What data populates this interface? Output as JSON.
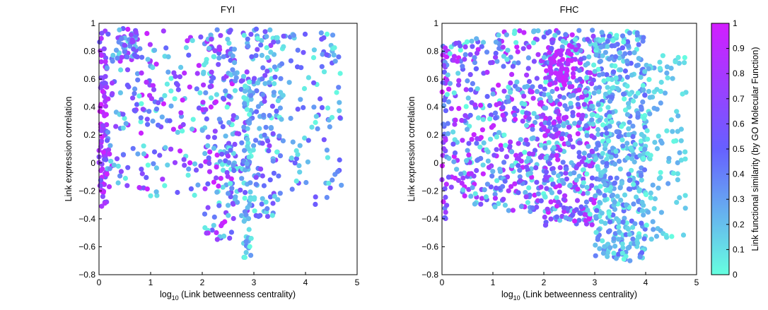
{
  "colorbar": {
    "label": "Link functional similarity (by GO Molecular Function)",
    "range": [
      0,
      1
    ],
    "ticks": [
      "0",
      "0.1",
      "0.2",
      "0.3",
      "0.4",
      "0.5",
      "0.6",
      "0.7",
      "0.8",
      "0.9",
      "1"
    ],
    "colors": {
      "low": "#66FFE0",
      "mid": "#6660FF",
      "high": "#D21EFF"
    }
  },
  "chart_data": [
    {
      "type": "scatter",
      "title": "FYI",
      "xlabel_prefix": "log",
      "xlabel_sub": "10",
      "xlabel_rest": " (Link betweenness centrality)",
      "ylabel": "Link expression correlation",
      "xlim": [
        0,
        5
      ],
      "ylim": [
        -0.8,
        1
      ],
      "xticks": [
        "0",
        "1",
        "2",
        "3",
        "4",
        "5"
      ],
      "yticks": [
        "−0.8",
        "−0.6",
        "−0.4",
        "−0.2",
        "0",
        "0.2",
        "0.4",
        "0.6",
        "0.8",
        "1"
      ],
      "clusters": [
        {
          "name": "x0-column",
          "x": [
            0,
            0.15
          ],
          "y": [
            -0.32,
            0.95
          ],
          "n": 90,
          "c": [
            0.5,
            1
          ]
        },
        {
          "name": "x0.2-1",
          "x": [
            0.15,
            1.0
          ],
          "y": [
            -0.2,
            0.97
          ],
          "n": 110,
          "c": [
            0,
            1
          ]
        },
        {
          "name": "x0.4-0.7-top",
          "x": [
            0.35,
            0.75
          ],
          "y": [
            0.75,
            0.97
          ],
          "n": 35,
          "c": [
            0,
            0.8
          ]
        },
        {
          "name": "x1-2",
          "x": [
            1.0,
            2.0
          ],
          "y": [
            -0.25,
            0.95
          ],
          "n": 90,
          "c": [
            0,
            1
          ]
        },
        {
          "name": "x2-2.5",
          "x": [
            2.0,
            2.6
          ],
          "y": [
            -0.55,
            0.97
          ],
          "n": 150,
          "c": [
            0,
            1
          ]
        },
        {
          "name": "x2.5-3.5",
          "x": [
            2.5,
            3.5
          ],
          "y": [
            -0.4,
            0.97
          ],
          "n": 220,
          "c": [
            0,
            0.75
          ]
        },
        {
          "name": "x2.85-column",
          "x": [
            2.8,
            2.95
          ],
          "y": [
            -0.68,
            0.6
          ],
          "n": 60,
          "c": [
            0,
            0.4
          ]
        },
        {
          "name": "x3.5-4.7",
          "x": [
            3.4,
            4.7
          ],
          "y": [
            -0.3,
            0.95
          ],
          "n": 110,
          "c": [
            0,
            0.6
          ]
        }
      ]
    },
    {
      "type": "scatter",
      "title": "FHC",
      "xlabel_prefix": "log",
      "xlabel_sub": "10",
      "xlabel_rest": " (Link betweenness centrality)",
      "ylabel": "Link expression correlation",
      "xlim": [
        0,
        5
      ],
      "ylim": [
        -0.8,
        1
      ],
      "xticks": [
        "0",
        "1",
        "2",
        "3",
        "4",
        "5"
      ],
      "yticks": [
        "−0.8",
        "−0.6",
        "−0.4",
        "−0.2",
        "0",
        "0.2",
        "0.4",
        "0.6",
        "0.8",
        "1"
      ],
      "clusters": [
        {
          "name": "x0-column",
          "x": [
            0,
            0.1
          ],
          "y": [
            -0.42,
            0.88
          ],
          "n": 45,
          "c": [
            0.3,
            1
          ]
        },
        {
          "name": "x0.1-1",
          "x": [
            0.1,
            1.0
          ],
          "y": [
            -0.3,
            0.9
          ],
          "n": 170,
          "c": [
            0,
            1
          ]
        },
        {
          "name": "x1-2",
          "x": [
            1.0,
            2.0
          ],
          "y": [
            -0.35,
            0.95
          ],
          "n": 260,
          "c": [
            0,
            1
          ]
        },
        {
          "name": "x2-3",
          "x": [
            2.0,
            3.0
          ],
          "y": [
            -0.45,
            0.97
          ],
          "n": 450,
          "c": [
            0,
            1
          ]
        },
        {
          "name": "x3-4",
          "x": [
            3.0,
            4.0
          ],
          "y": [
            -0.7,
            0.95
          ],
          "n": 500,
          "c": [
            0,
            0.5
          ]
        },
        {
          "name": "x2.2-2.6-high",
          "x": [
            2.1,
            2.6
          ],
          "y": [
            0.55,
            0.85
          ],
          "n": 45,
          "c": [
            0.85,
            1
          ]
        },
        {
          "name": "x4-4.8",
          "x": [
            3.9,
            4.8
          ],
          "y": [
            -0.55,
            0.8
          ],
          "n": 110,
          "c": [
            0,
            0.3
          ]
        }
      ]
    }
  ]
}
